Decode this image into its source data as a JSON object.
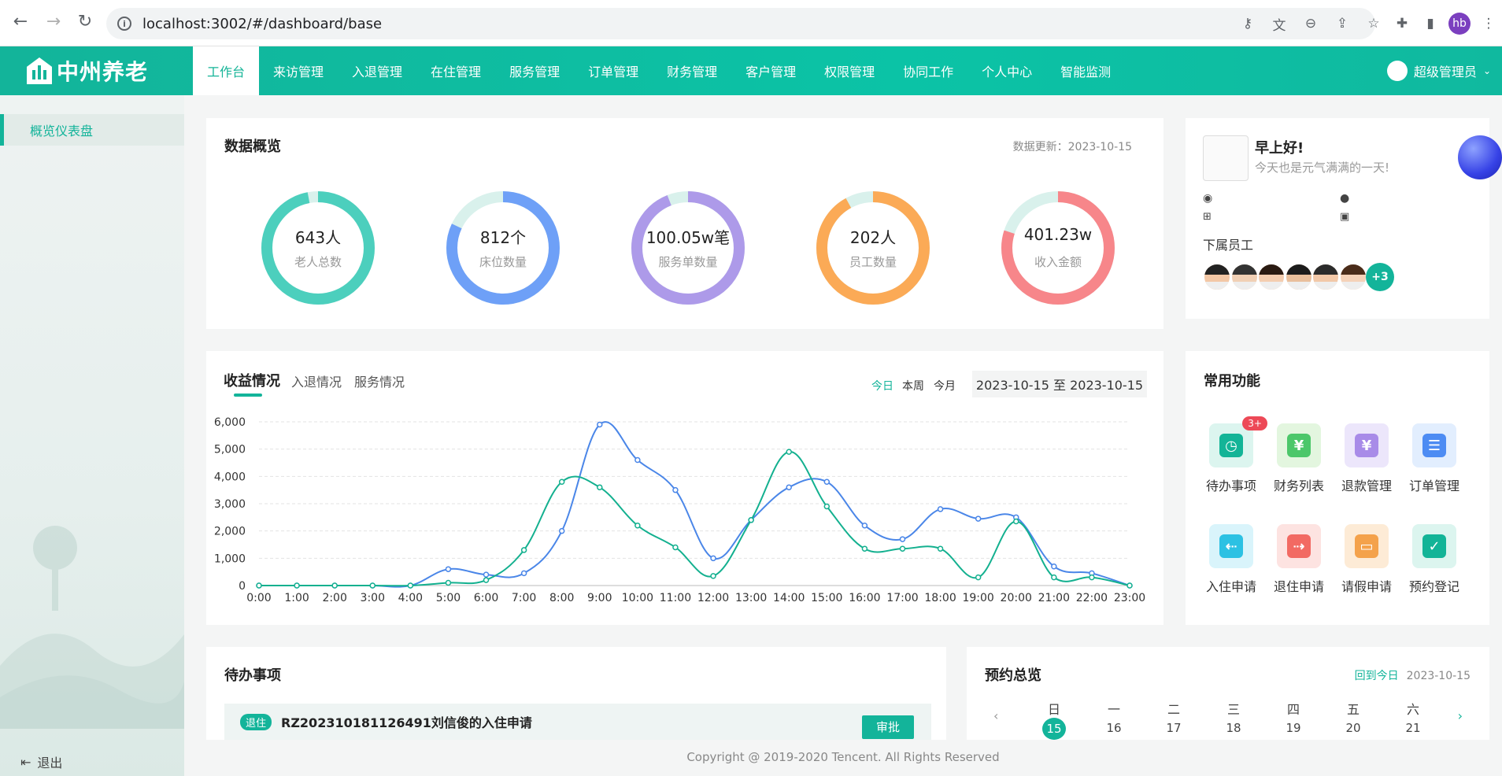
{
  "browser": {
    "url": "localhost:3002/#/dashboard/base",
    "profile_initials": "hb"
  },
  "app": {
    "logo_text": "中州养老",
    "user_name": "超级管理员",
    "accent": "#13b49a"
  },
  "nav": [
    "工作台",
    "来访管理",
    "入退管理",
    "在住管理",
    "服务管理",
    "订单管理",
    "财务管理",
    "客户管理",
    "权限管理",
    "协同工作",
    "个人中心",
    "智能监测"
  ],
  "sidebar": {
    "item": "概览仪表盘",
    "logout": "退出"
  },
  "overview": {
    "title": "数据概览",
    "update_label": "数据更新：",
    "update_date": "2023-10-15",
    "rings": [
      {
        "value": "643人",
        "label": "老人总数",
        "color": "#4ccfbd",
        "fraction": 0.97
      },
      {
        "value": "812个",
        "label": "床位数量",
        "color": "#6ea0f7",
        "fraction": 0.82
      },
      {
        "value": "100.05w笔",
        "label": "服务单数量",
        "color": "#ad9ae9",
        "fraction": 0.94
      },
      {
        "value": "202人",
        "label": "员工数量",
        "color": "#fbaa56",
        "fraction": 0.92
      },
      {
        "value": "401.23w",
        "label": "收入金额",
        "color": "#f7868a",
        "fraction": 0.8
      }
    ]
  },
  "revenue": {
    "tabs": [
      "收益情况",
      "入退情况",
      "服务情况"
    ],
    "ranges": [
      "今日",
      "本周",
      "今月"
    ],
    "date_range": "2023-10-15 至 2023-10-15"
  },
  "chart_data": {
    "type": "line",
    "categories": [
      "0:00",
      "1:00",
      "2:00",
      "3:00",
      "4:00",
      "5:00",
      "6:00",
      "7:00",
      "8:00",
      "9:00",
      "10:00",
      "11:00",
      "12:00",
      "13:00",
      "14:00",
      "15:00",
      "16:00",
      "17:00",
      "18:00",
      "19:00",
      "20:00",
      "21:00",
      "22:00",
      "23:00"
    ],
    "yticks": [
      "0",
      "1,000",
      "2,000",
      "3,000",
      "4,000",
      "5,000",
      "6,000"
    ],
    "ylim": [
      0,
      6000
    ],
    "series": [
      {
        "color": "#4a86e8",
        "values": [
          0,
          0,
          0,
          0,
          0,
          600,
          400,
          450,
          2000,
          5900,
          4600,
          3500,
          1000,
          2400,
          3600,
          3800,
          2200,
          1700,
          2800,
          2450,
          2500,
          700,
          450,
          0
        ]
      },
      {
        "color": "#13b08f",
        "values": [
          0,
          0,
          0,
          0,
          0,
          100,
          200,
          1300,
          3800,
          3600,
          2200,
          1400,
          350,
          2400,
          4900,
          2900,
          1350,
          1350,
          1350,
          300,
          2350,
          300,
          300,
          0
        ]
      }
    ]
  },
  "greeting": {
    "title": "早上好!",
    "subtitle": "今天也是元气满满的一天!",
    "staff_label": "下属员工",
    "extra_count": "+3"
  },
  "functions": {
    "title": "常用功能",
    "items": [
      {
        "label": "待办事项",
        "icon": "alarm-clock-icon",
        "bg": "#dcf5ef",
        "fg": "#13b497",
        "badge": "3+"
      },
      {
        "label": "财务列表",
        "icon": "yen-note-icon",
        "bg": "#e3f6df",
        "fg": "#4cc76a"
      },
      {
        "label": "退款管理",
        "icon": "refund-icon",
        "bg": "#ece6fb",
        "fg": "#a88be8"
      },
      {
        "label": "订单管理",
        "icon": "order-list-icon",
        "bg": "#e2eefe",
        "fg": "#4d8cf3"
      },
      {
        "label": "入住申请",
        "icon": "check-in-icon",
        "bg": "#d9f4fb",
        "fg": "#2cc1e3"
      },
      {
        "label": "退住申请",
        "icon": "check-out-icon",
        "bg": "#fde3e1",
        "fg": "#f26a63"
      },
      {
        "label": "请假申请",
        "icon": "leave-icon",
        "bg": "#fdebd6",
        "fg": "#f4a24b"
      },
      {
        "label": "预约登记",
        "icon": "calendar-check-icon",
        "bg": "#dcf5ef",
        "fg": "#13b497"
      }
    ]
  },
  "todo": {
    "title": "待办事项",
    "item_tag": "退住",
    "item_text": "RZ202310181126491刘信俊的入住申请",
    "approve": "审批"
  },
  "calendar": {
    "title": "预约总览",
    "back_today": "回到今日",
    "date": "2023-10-15",
    "weekdays": [
      "日",
      "一",
      "二",
      "三",
      "四",
      "五",
      "六"
    ],
    "days": [
      "15",
      "16",
      "17",
      "18",
      "19",
      "20",
      "21"
    ]
  },
  "footer": "Copyright @ 2019-2020 Tencent. All Rights Reserved"
}
